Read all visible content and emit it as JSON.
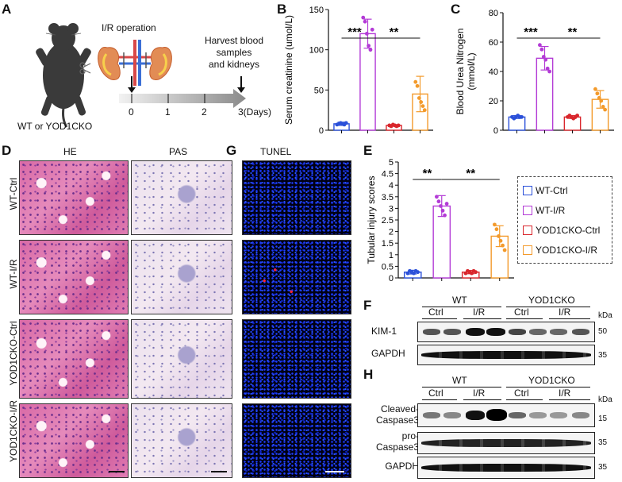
{
  "panels": {
    "A": "A",
    "B": "B",
    "C": "C",
    "D": "D",
    "E": "E",
    "F": "F",
    "G": "G",
    "H": "H"
  },
  "panel_a": {
    "operation": "I/R operation",
    "harvest": [
      "Harvest blood",
      "samples",
      "and kidneys"
    ],
    "ticks": [
      "0",
      "1",
      "2",
      "3(Days)"
    ],
    "mouse_label": "WT or YOD1CKO"
  },
  "histology": {
    "headers": [
      "HE",
      "PAS",
      "TUNEL"
    ],
    "rows": [
      "WT-Ctrl",
      "WT-I/R",
      "YOD1CKO-Ctrl",
      "YOD1CKO-I/R"
    ]
  },
  "legend": {
    "items": [
      {
        "label": "WT-Ctrl",
        "color": "#2b50d9"
      },
      {
        "label": "WT-I/R",
        "color": "#b33bd6"
      },
      {
        "label": "YOD1CKO-Ctrl",
        "color": "#d9262c"
      },
      {
        "label": "YOD1CKO-I/R",
        "color": "#f39a2b"
      }
    ]
  },
  "chart_data": [
    {
      "panel": "B",
      "type": "bar",
      "ylabel": "Serum creatinine (umol/L)",
      "ylim": [
        0,
        150
      ],
      "yticks": [
        0,
        50,
        100,
        150
      ],
      "series": [
        {
          "name": "WT-Ctrl",
          "value": 8,
          "err": 2,
          "points": [
            7,
            8,
            9,
            8,
            7,
            9
          ]
        },
        {
          "name": "WT-I/R",
          "value": 120,
          "err": 18,
          "points": [
            140,
            135,
            120,
            105,
            100,
            125
          ]
        },
        {
          "name": "YOD1CKO-Ctrl",
          "value": 6,
          "err": 1,
          "points": [
            6,
            5,
            7,
            6,
            5,
            6
          ]
        },
        {
          "name": "YOD1CKO-I/R",
          "value": 45,
          "err": 22,
          "points": [
            60,
            55,
            40,
            35,
            30,
            25
          ]
        }
      ],
      "significance": [
        {
          "label": "***",
          "from": 0,
          "to": 1
        },
        {
          "label": "**",
          "from": 1,
          "to": 3
        }
      ]
    },
    {
      "panel": "C",
      "type": "bar",
      "ylabel": "Blood Urea Nitrogen (mmol/L)",
      "ylim": [
        0,
        80
      ],
      "yticks": [
        0,
        20,
        40,
        60,
        80
      ],
      "series": [
        {
          "name": "WT-Ctrl",
          "value": 9,
          "err": 1,
          "points": [
            9,
            8,
            9,
            10,
            9,
            9
          ]
        },
        {
          "name": "WT-I/R",
          "value": 49,
          "err": 8,
          "points": [
            58,
            55,
            50,
            48,
            42,
            40
          ]
        },
        {
          "name": "YOD1CKO-Ctrl",
          "value": 9,
          "err": 1,
          "points": [
            9,
            10,
            9,
            8,
            9,
            10
          ]
        },
        {
          "name": "YOD1CKO-I/R",
          "value": 21,
          "err": 6,
          "points": [
            28,
            25,
            22,
            20,
            16,
            14
          ]
        }
      ],
      "significance": [
        {
          "label": "***",
          "from": 0,
          "to": 1
        },
        {
          "label": "**",
          "from": 1,
          "to": 3
        }
      ]
    },
    {
      "panel": "E",
      "type": "bar",
      "ylabel": "Tubular injury scores",
      "ylim": [
        0,
        5
      ],
      "yticks": [
        0,
        0.5,
        1,
        1.5,
        2,
        2.5,
        3,
        3.5,
        4,
        4.5,
        5
      ],
      "series": [
        {
          "name": "WT-Ctrl",
          "value": 0.25,
          "err": 0.08,
          "points": [
            0.2,
            0.3,
            0.25,
            0.2,
            0.3,
            0.25
          ]
        },
        {
          "name": "WT-I/R",
          "value": 3.1,
          "err": 0.45,
          "points": [
            3.5,
            3.3,
            3.1,
            2.9,
            2.7,
            3.2
          ]
        },
        {
          "name": "YOD1CKO-Ctrl",
          "value": 0.25,
          "err": 0.07,
          "points": [
            0.2,
            0.3,
            0.25,
            0.2,
            0.3,
            0.25
          ]
        },
        {
          "name": "YOD1CKO-I/R",
          "value": 1.8,
          "err": 0.45,
          "points": [
            2.3,
            2.1,
            1.8,
            1.6,
            1.4,
            1.2
          ]
        }
      ],
      "significance": [
        {
          "label": "**",
          "from": 0,
          "to": 1
        },
        {
          "label": "**",
          "from": 1,
          "to": 3
        }
      ]
    }
  ],
  "blot_f": {
    "groups": [
      "WT",
      "YOD1CKO"
    ],
    "conds": [
      "Ctrl",
      "I/R",
      "Ctrl",
      "I/R"
    ],
    "rows": [
      "KIM-1",
      "GAPDH"
    ],
    "kda_title": "kDa",
    "kda": [
      "50",
      "35"
    ]
  },
  "blot_h": {
    "groups": [
      "WT",
      "YOD1CKO"
    ],
    "conds": [
      "Ctrl",
      "I/R",
      "Ctrl",
      "I/R"
    ],
    "rows": [
      [
        "Cleaved-",
        "Caspase3"
      ],
      [
        "pro-",
        "Caspase3"
      ],
      [
        "GAPDH"
      ]
    ],
    "kda_title": "kDa",
    "kda": [
      "15",
      "35",
      "35"
    ]
  }
}
